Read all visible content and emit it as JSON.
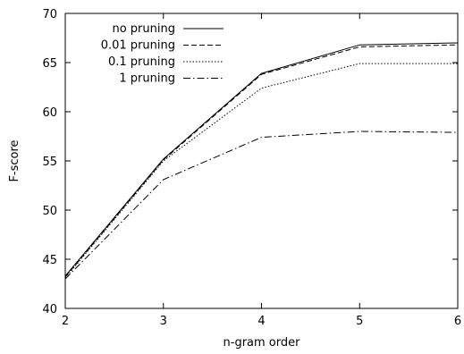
{
  "chart_data": {
    "type": "line",
    "xlabel": "n-gram order",
    "ylabel": "F-score",
    "x": [
      2,
      3,
      4,
      5,
      6
    ],
    "xlim": [
      2,
      6
    ],
    "ylim": [
      40,
      70
    ],
    "x_ticks": [
      2,
      3,
      4,
      5,
      6
    ],
    "y_ticks": [
      40,
      45,
      50,
      55,
      60,
      65,
      70
    ],
    "grid": false,
    "legend_position": "top-left",
    "series": [
      {
        "name": "no pruning",
        "dash": "solid",
        "values": [
          43.3,
          55.2,
          63.9,
          66.8,
          67.0
        ]
      },
      {
        "name": "0.01 pruning",
        "dash": "dashed",
        "values": [
          43.2,
          55.1,
          63.8,
          66.6,
          66.8
        ]
      },
      {
        "name": "0.1 pruning",
        "dash": "dotted",
        "values": [
          43.1,
          55.0,
          62.4,
          64.9,
          64.9
        ]
      },
      {
        "name": "1 pruning",
        "dash": "dashdot",
        "values": [
          43.0,
          53.1,
          57.4,
          58.0,
          57.9
        ]
      }
    ]
  }
}
